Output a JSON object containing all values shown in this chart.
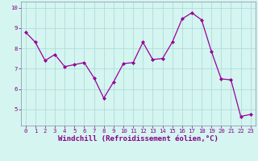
{
  "x": [
    0,
    1,
    2,
    3,
    4,
    5,
    6,
    7,
    8,
    9,
    10,
    11,
    12,
    13,
    14,
    15,
    16,
    17,
    18,
    19,
    20,
    21,
    22,
    23
  ],
  "y": [
    8.8,
    8.3,
    7.4,
    7.7,
    7.1,
    7.2,
    7.3,
    6.55,
    5.55,
    6.35,
    7.25,
    7.3,
    8.3,
    7.45,
    7.5,
    8.3,
    9.45,
    9.75,
    9.4,
    7.85,
    6.5,
    6.45,
    4.65,
    4.75
  ],
  "line_color": "#990099",
  "marker": "D",
  "marker_size": 2.0,
  "bg_color": "#d4f5f0",
  "grid_color": "#aad8d8",
  "xlabel": "Windchill (Refroidissement éolien,°C)",
  "xlabel_color": "#880088",
  "ylim": [
    4.2,
    10.3
  ],
  "xlim": [
    -0.5,
    23.5
  ],
  "yticks": [
    5,
    6,
    7,
    8,
    9,
    10
  ],
  "xticks": [
    0,
    1,
    2,
    3,
    4,
    5,
    6,
    7,
    8,
    9,
    10,
    11,
    12,
    13,
    14,
    15,
    16,
    17,
    18,
    19,
    20,
    21,
    22,
    23
  ],
  "tick_color": "#880088",
  "tick_fontsize": 5.2,
  "xlabel_fontsize": 6.5,
  "line_width": 0.9,
  "spine_color": "#8888aa"
}
